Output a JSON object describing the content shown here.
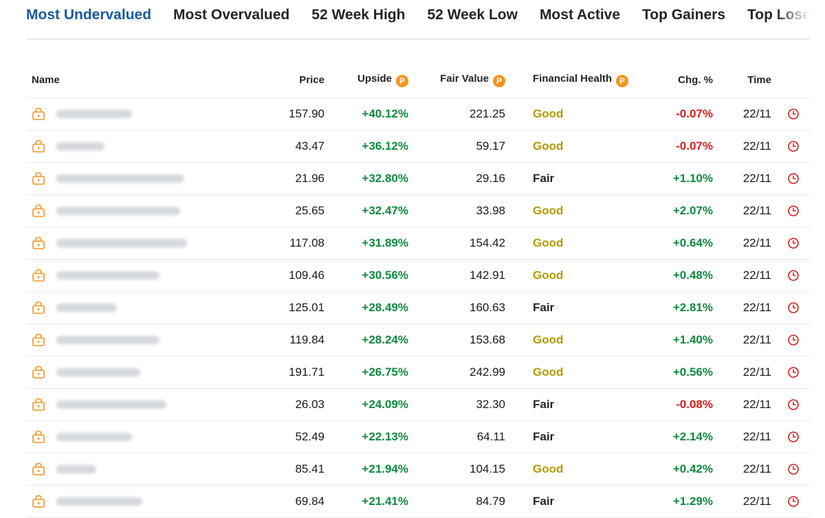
{
  "tabs": [
    {
      "label": "Most Undervalued",
      "active": true
    },
    {
      "label": "Most Overvalued",
      "active": false
    },
    {
      "label": "52 Week High",
      "active": false
    },
    {
      "label": "52 Week Low",
      "active": false
    },
    {
      "label": "Most Active",
      "active": false
    },
    {
      "label": "Top Gainers",
      "active": false
    },
    {
      "label": "Top Losers",
      "active": false
    }
  ],
  "columns": {
    "name": "Name",
    "price": "Price",
    "upside": "Upside",
    "fair_value": "Fair Value",
    "financial_health": "Financial Health",
    "chg": "Chg. %",
    "time": "Time"
  },
  "pro_badge": "P",
  "icons": {
    "lock": "lock-icon",
    "clock": "clock-icon",
    "pro": "pro-badge-icon"
  },
  "colors": {
    "accent": "#1a5a9b",
    "positive": "#0e8a3e",
    "negative": "#d91e18",
    "good": "#b39a00",
    "pro": "#f7931e"
  },
  "rows": [
    {
      "price": "157.90",
      "upside": "+40.12%",
      "fair_value": "221.25",
      "health": "Good",
      "chg": "-0.07%",
      "time": "22/11",
      "blur_w": 110
    },
    {
      "price": "43.47",
      "upside": "+36.12%",
      "fair_value": "59.17",
      "health": "Good",
      "chg": "-0.07%",
      "time": "22/11",
      "blur_w": 70
    },
    {
      "price": "21.96",
      "upside": "+32.80%",
      "fair_value": "29.16",
      "health": "Fair",
      "chg": "+1.10%",
      "time": "22/11",
      "blur_w": 185
    },
    {
      "price": "25.65",
      "upside": "+32.47%",
      "fair_value": "33.98",
      "health": "Good",
      "chg": "+2.07%",
      "time": "22/11",
      "blur_w": 180
    },
    {
      "price": "117.08",
      "upside": "+31.89%",
      "fair_value": "154.42",
      "health": "Good",
      "chg": "+0.64%",
      "time": "22/11",
      "blur_w": 190
    },
    {
      "price": "109.46",
      "upside": "+30.56%",
      "fair_value": "142.91",
      "health": "Good",
      "chg": "+0.48%",
      "time": "22/11",
      "blur_w": 150
    },
    {
      "price": "125.01",
      "upside": "+28.49%",
      "fair_value": "160.63",
      "health": "Fair",
      "chg": "+2.81%",
      "time": "22/11",
      "blur_w": 88
    },
    {
      "price": "119.84",
      "upside": "+28.24%",
      "fair_value": "153.68",
      "health": "Good",
      "chg": "+1.40%",
      "time": "22/11",
      "blur_w": 150
    },
    {
      "price": "191.71",
      "upside": "+26.75%",
      "fair_value": "242.99",
      "health": "Good",
      "chg": "+0.56%",
      "time": "22/11",
      "blur_w": 122
    },
    {
      "price": "26.03",
      "upside": "+24.09%",
      "fair_value": "32.30",
      "health": "Fair",
      "chg": "-0.08%",
      "time": "22/11",
      "blur_w": 160
    },
    {
      "price": "52.49",
      "upside": "+22.13%",
      "fair_value": "64.11",
      "health": "Fair",
      "chg": "+2.14%",
      "time": "22/11",
      "blur_w": 110
    },
    {
      "price": "85.41",
      "upside": "+21.94%",
      "fair_value": "104.15",
      "health": "Good",
      "chg": "+0.42%",
      "time": "22/11",
      "blur_w": 58
    },
    {
      "price": "69.84",
      "upside": "+21.41%",
      "fair_value": "84.79",
      "health": "Fair",
      "chg": "+1.29%",
      "time": "22/11",
      "blur_w": 125
    }
  ]
}
